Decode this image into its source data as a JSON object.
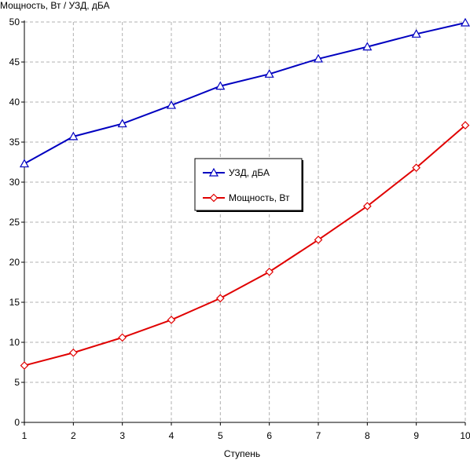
{
  "chart_data": {
    "type": "line",
    "title": "",
    "xlabel": "Ступень",
    "ylabel": "Мощность, Вт / УЗД, дБА",
    "x": [
      1,
      2,
      3,
      4,
      5,
      6,
      7,
      8,
      9,
      10
    ],
    "xlim": [
      1,
      10
    ],
    "ylim": [
      0,
      50
    ],
    "yticks": [
      0,
      5,
      10,
      15,
      20,
      25,
      30,
      35,
      40,
      45,
      50
    ],
    "grid": true,
    "legend_position": "center",
    "series": [
      {
        "name": "УЗД, дБА",
        "color": "#0000c0",
        "marker": "triangle",
        "values": [
          32.3,
          35.7,
          37.3,
          39.6,
          42.0,
          43.5,
          45.4,
          46.9,
          48.5,
          49.9
        ]
      },
      {
        "name": "Мощность, Вт",
        "color": "#e00000",
        "marker": "diamond",
        "values": [
          7.1,
          8.7,
          10.6,
          12.8,
          15.5,
          18.8,
          22.8,
          27.0,
          31.8,
          37.1
        ]
      }
    ]
  }
}
